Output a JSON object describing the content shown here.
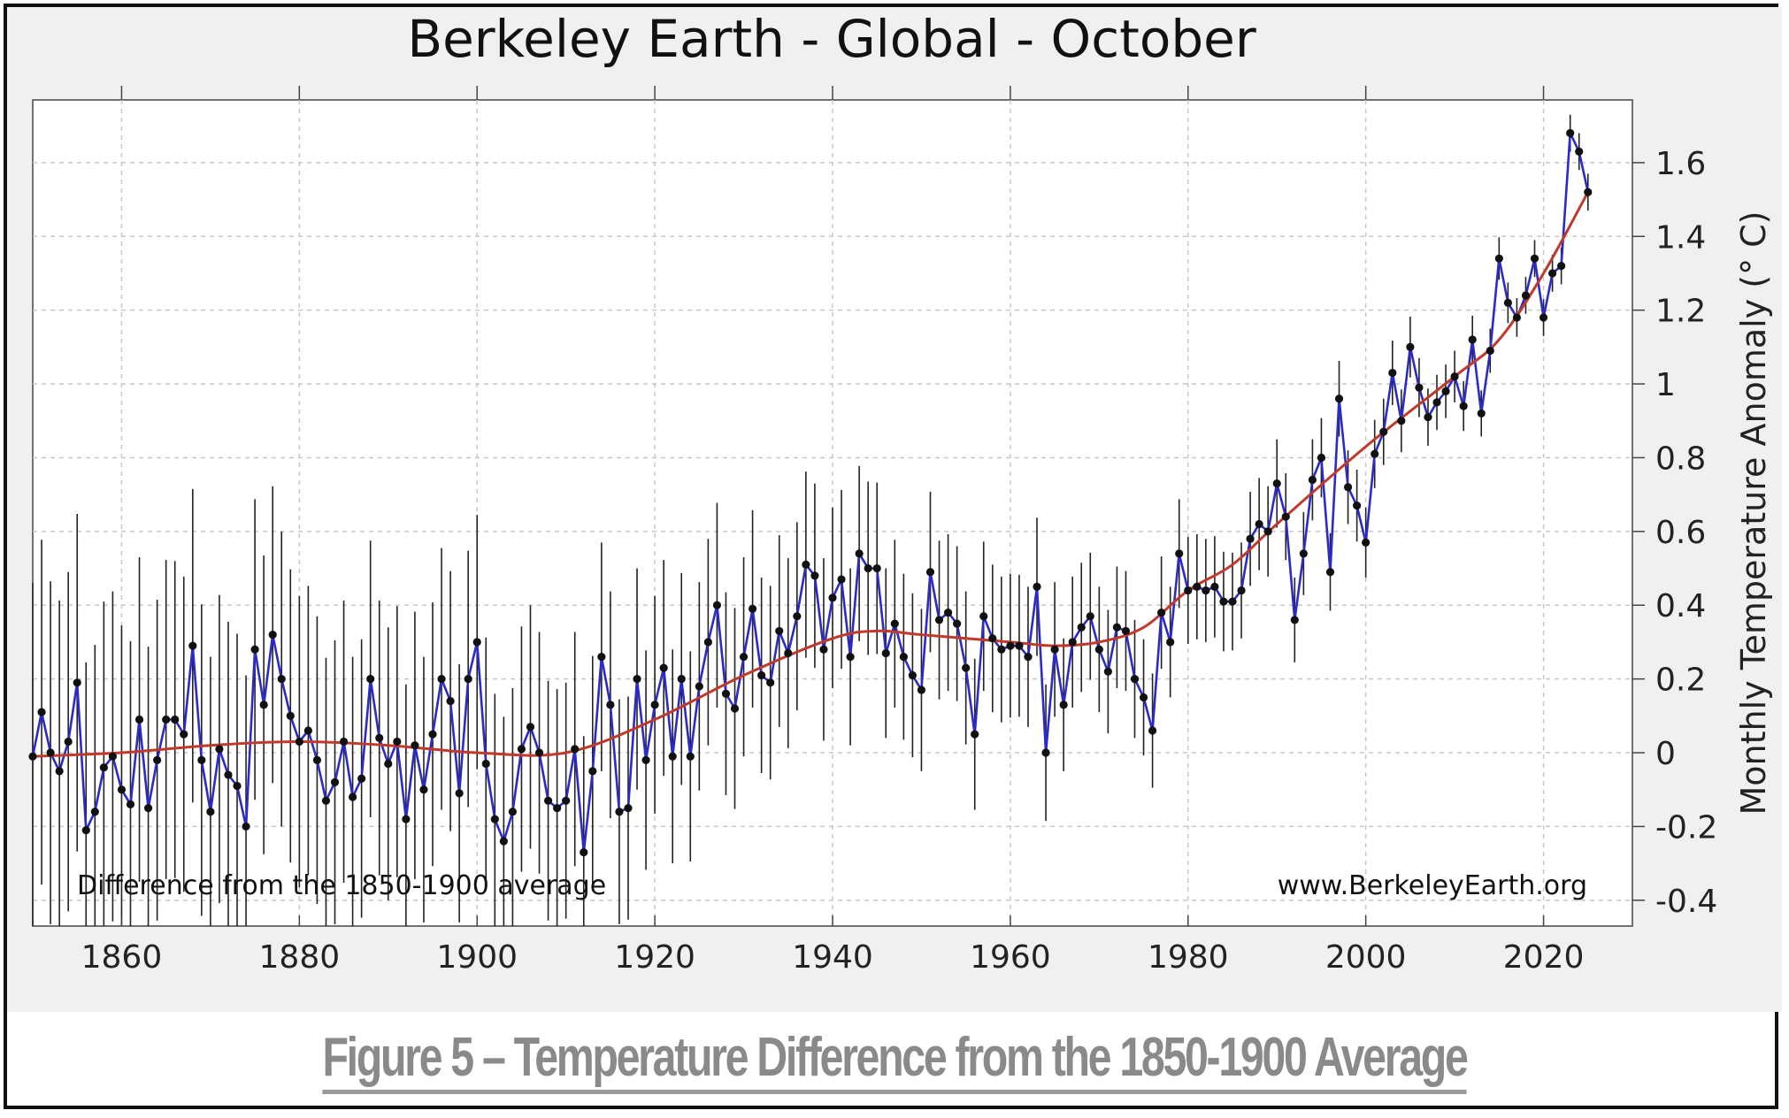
{
  "caption": "Figure 5 – Temperature Difference from the 1850-1900 Average",
  "chart_data": {
    "type": "line",
    "title": "Berkeley Earth - Global - October",
    "xlabel": "",
    "ylabel": "Monthly Temperature Anomaly (° C)",
    "xlim": [
      1850,
      2030
    ],
    "ylim": [
      -0.47,
      1.77
    ],
    "x_ticks": [
      1860,
      1880,
      1900,
      1920,
      1940,
      1960,
      1980,
      2000,
      2020
    ],
    "y_ticks": [
      -0.4,
      -0.2,
      0,
      0.2,
      0.4,
      0.6,
      0.8,
      1,
      1.2,
      1.4,
      1.6
    ],
    "y_tick_labels": [
      "-0.4",
      "-0.2",
      "0",
      "0.2",
      "0.4",
      "0.6",
      "0.8",
      "1",
      "1.2",
      "1.4",
      "1.6"
    ],
    "grid": true,
    "annotations": {
      "left": "Difference from the 1850-1900 average",
      "right": "www.BerkeleyEarth.org"
    },
    "colors": {
      "series": "#2b2bcc",
      "smooth": "#c0392b",
      "points": "#111111",
      "errorbars": "#222222"
    },
    "series": [
      {
        "start_year": 1850,
        "values": [
          -0.01,
          0.11,
          0.0,
          -0.05,
          0.03,
          0.19,
          -0.21,
          -0.16,
          -0.04,
          -0.01,
          -0.1,
          -0.14,
          0.09,
          -0.15,
          -0.02,
          0.09,
          0.09,
          0.05,
          0.29,
          -0.02,
          -0.16,
          0.01,
          -0.06,
          -0.09,
          -0.2,
          0.28,
          0.13,
          0.32,
          0.2,
          0.1,
          0.03,
          0.06,
          -0.02,
          -0.13,
          -0.08,
          0.03,
          -0.12,
          -0.07,
          0.2,
          0.04,
          -0.03,
          0.03,
          -0.18,
          0.02,
          -0.1,
          0.05,
          0.2,
          0.14,
          -0.11,
          0.2,
          0.3,
          -0.03,
          -0.18,
          -0.24,
          -0.16,
          0.01,
          0.07,
          0.0,
          -0.13,
          -0.15,
          -0.13,
          0.01,
          -0.27,
          -0.05,
          0.26,
          0.13,
          -0.16,
          -0.15,
          0.2,
          -0.02,
          0.13,
          0.23,
          -0.01,
          0.2,
          -0.01,
          0.18,
          0.3,
          0.4,
          0.16,
          0.12,
          0.26,
          0.39,
          0.21,
          0.19,
          0.33,
          0.27,
          0.37,
          0.51,
          0.48,
          0.28,
          0.42,
          0.47,
          0.26,
          0.54,
          0.5,
          0.5,
          0.27,
          0.35,
          0.26,
          0.21,
          0.17,
          0.49,
          0.36,
          0.38,
          0.35,
          0.23,
          0.05,
          0.37,
          0.31,
          0.28,
          0.29,
          0.29,
          0.26,
          0.45,
          0.0,
          0.28,
          0.13,
          0.3,
          0.34,
          0.37,
          0.28,
          0.22,
          0.34,
          0.33,
          0.2,
          0.15,
          0.06,
          0.38,
          0.3,
          0.54,
          0.44,
          0.45,
          0.44,
          0.45,
          0.41,
          0.41,
          0.44,
          0.58,
          0.62,
          0.6,
          0.73,
          0.64,
          0.36,
          0.54,
          0.74,
          0.8,
          0.49,
          0.96,
          0.72,
          0.67,
          0.57,
          0.81,
          0.87,
          1.03,
          0.9,
          1.1,
          0.99,
          0.91,
          0.95,
          0.98,
          1.02,
          0.94,
          1.12,
          0.92,
          1.09,
          1.34,
          1.22,
          1.18,
          1.24,
          1.34,
          1.18,
          1.3,
          1.32,
          1.68,
          1.63,
          1.52
        ]
      },
      {
        "years": [
          1850,
          1860,
          1870,
          1880,
          1890,
          1900,
          1910,
          1920,
          1930,
          1940,
          1945,
          1950,
          1960,
          1965,
          1970,
          1975,
          1980,
          1985,
          1990,
          2000,
          2010,
          2015,
          2020,
          2025
        ],
        "values": [
          -0.01,
          0.0,
          0.02,
          0.03,
          0.02,
          0.0,
          0.0,
          0.09,
          0.21,
          0.31,
          0.33,
          0.32,
          0.3,
          0.29,
          0.3,
          0.34,
          0.44,
          0.51,
          0.62,
          0.83,
          1.02,
          1.12,
          1.3,
          1.52
        ]
      }
    ]
  }
}
